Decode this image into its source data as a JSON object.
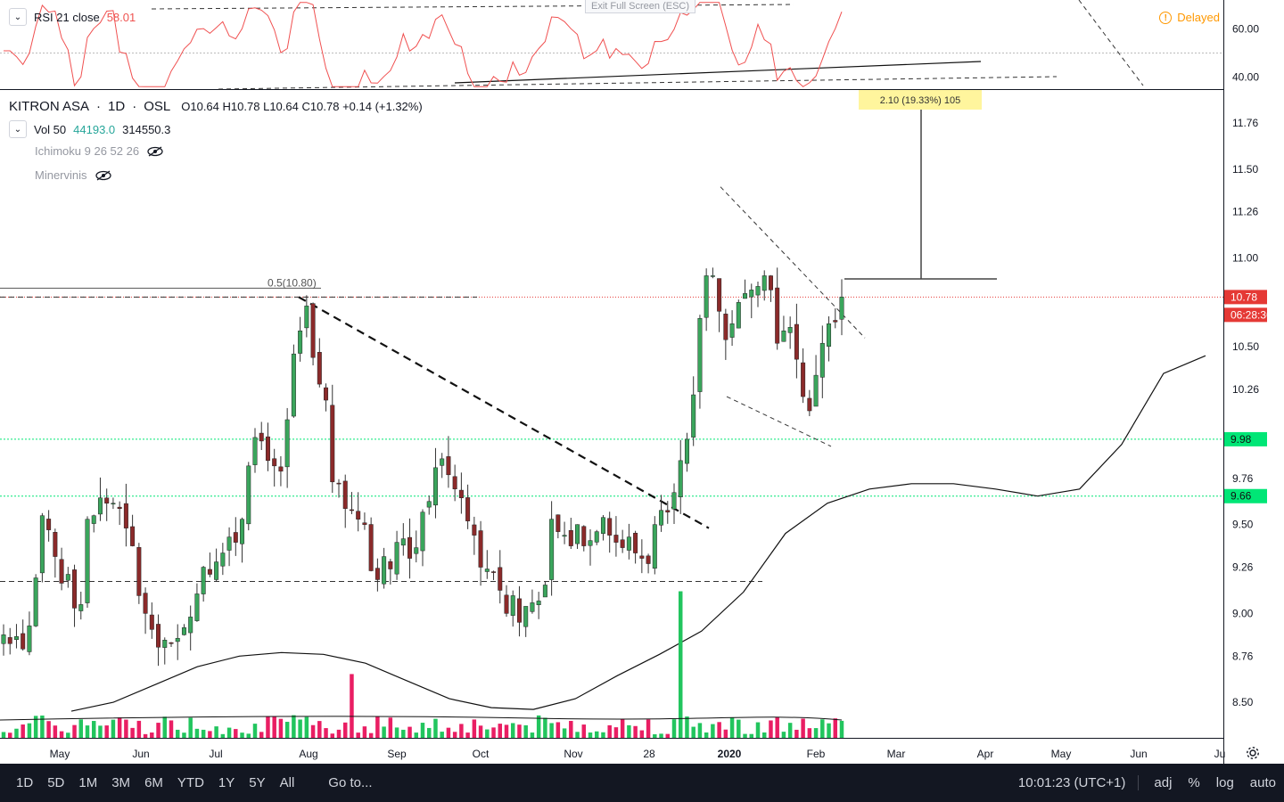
{
  "symbol": {
    "name": "KITRON ASA",
    "interval": "1D",
    "exchange": "OSL",
    "sep": "·"
  },
  "ohlc": {
    "o_label": "O",
    "o": "10.64",
    "h_label": "H",
    "h": "10.78",
    "l_label": "L",
    "l": "10.64",
    "c_label": "C",
    "c": "10.78",
    "change": "+0.14 (+1.32%)"
  },
  "volume": {
    "label": "Vol 50",
    "v1": "44193.0",
    "v2": "314550.3"
  },
  "indicators": {
    "ichimoku": "Ichimoku 9 26 52 26",
    "minervinis": "Minervinis"
  },
  "rsi": {
    "label": "RSI 21 close",
    "value": "58.01"
  },
  "exit_fullscreen": "Exit Full Screen (ESC)",
  "delayed": {
    "label": "Delayed",
    "icon": "!"
  },
  "measure_label": "2.10 (19.33%) 105",
  "fib_label": "0.5(10.80)",
  "price_tags": {
    "last": "10.78",
    "countdown": "06:28:36",
    "green1": "9.98",
    "green2": "9.66"
  },
  "colors": {
    "up": "#26a69a",
    "down": "#ef5350",
    "candle_up": "#3aa55c",
    "candle_down": "#8b2a2a",
    "vol_up": "#22c55e",
    "vol_down": "#e91e63",
    "green_line": "#00e676",
    "red_line": "#e53935"
  },
  "price_axis": {
    "ticks": [
      11.76,
      11.5,
      11.26,
      11.0,
      10.5,
      10.26,
      9.76,
      9.5,
      9.26,
      9.0,
      8.76,
      8.5
    ]
  },
  "rsi_axis": {
    "ticks": [
      60.0,
      40.0
    ]
  },
  "time_axis": [
    "May",
    "Jun",
    "Jul",
    "Aug",
    "Sep",
    "Oct",
    "Nov",
    "28",
    "2020",
    "Feb",
    "Mar",
    "Apr",
    "May",
    "Jun",
    "Ju"
  ],
  "bottom_bar": {
    "timeframes": [
      "1D",
      "5D",
      "1M",
      "3M",
      "6M",
      "YTD",
      "1Y",
      "5Y",
      "All"
    ],
    "goto": "Go to...",
    "clock": "10:01:23 (UTC+1)",
    "right": [
      "adj",
      "%",
      "log",
      "auto"
    ]
  },
  "chart_data": {
    "type": "candlestick",
    "start": "2019-04-15",
    "closes": [
      8.88,
      8.83,
      8.87,
      8.8,
      8.93,
      9.2,
      9.55,
      9.47,
      9.32,
      9.17,
      9.22,
      9.03,
      9.05,
      9.53,
      9.55,
      9.65,
      9.62,
      9.62,
      9.59,
      9.48,
      9.38,
      9.1,
      9.0,
      8.91,
      8.81,
      8.85,
      8.83,
      8.86,
      8.92,
      8.98,
      9.11,
      9.26,
      9.22,
      9.29,
      9.34,
      9.43,
      9.4,
      9.53,
      9.83,
      9.99,
      9.97,
      9.86,
      9.83,
      9.8,
      10.09,
      10.46,
      10.59,
      10.73,
      10.44,
      10.29,
      10.2,
      9.74,
      9.73,
      9.59,
      9.58,
      9.53,
      9.5,
      9.24,
      9.19,
      9.32,
      9.25,
      9.4,
      9.42,
      9.31,
      9.37,
      9.57,
      9.63,
      9.82,
      9.87,
      9.78,
      9.7,
      9.65,
      9.52,
      9.44,
      9.26,
      9.25,
      9.23,
      9.13,
      9.0,
      9.1,
      8.95,
      9.04,
      9.06,
      9.07,
      9.16,
      9.53,
      9.46,
      9.44,
      9.38,
      9.5,
      9.38,
      9.41,
      9.46,
      9.54,
      9.44,
      9.4,
      9.37,
      9.43,
      9.34,
      9.31,
      9.28,
      9.5,
      9.58,
      9.57,
      9.68,
      9.86,
      9.98,
      10.23,
      10.66,
      10.9,
      10.9,
      10.7,
      10.54,
      10.63,
      10.75,
      10.8,
      10.82,
      10.84,
      10.9,
      10.82,
      10.52,
      10.59,
      10.61,
      10.43,
      10.22,
      10.14,
      10.34,
      10.52,
      10.63,
      10.64,
      10.78
    ],
    "volume_ma": [
      40000,
      41000,
      42000,
      43500,
      45000,
      46000,
      47000,
      48000,
      49000,
      49000
    ],
    "sma_long": [
      8.45,
      8.5,
      8.6,
      8.7,
      8.76,
      8.78,
      8.77,
      8.72,
      8.62,
      8.52,
      8.47,
      8.46,
      8.52,
      8.65,
      8.77,
      8.9,
      9.12,
      9.45,
      9.62,
      9.7,
      9.73,
      9.73,
      9.7,
      9.66,
      9.7,
      9.95,
      10.35,
      10.45
    ],
    "ylim": [
      8.3,
      11.95
    ],
    "rsi_ylim": [
      35,
      72
    ],
    "support_lines": [
      9.98,
      9.66
    ],
    "fib_level": 10.8
  }
}
